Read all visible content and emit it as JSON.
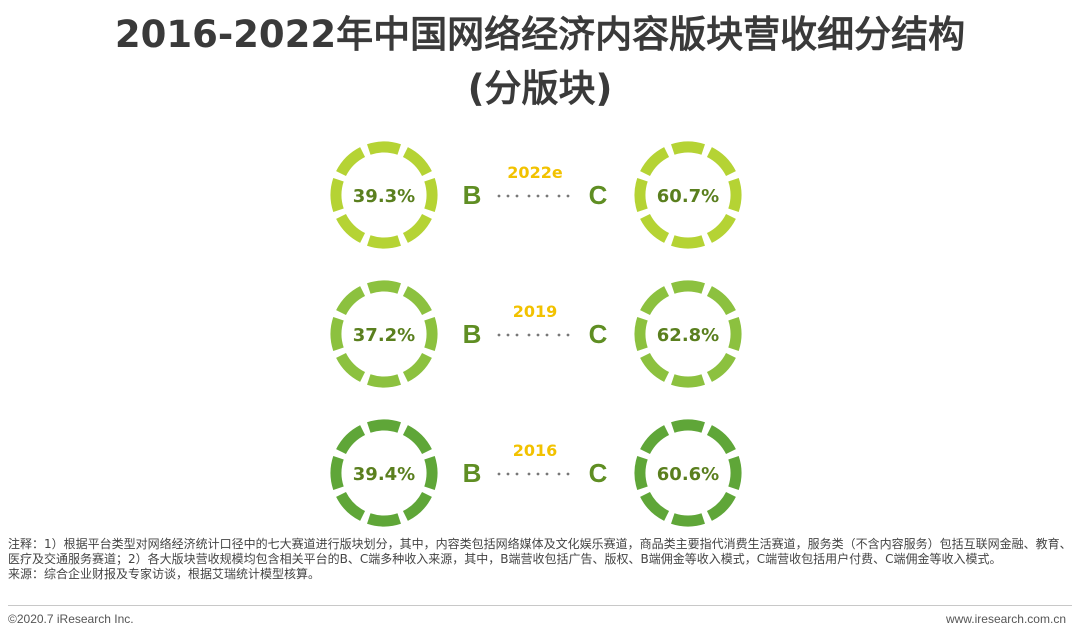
{
  "title": {
    "line1": "2016-2022年中国网络经济内容版块营收细分结构",
    "line2": "(分版块)"
  },
  "chart_data": {
    "type": "pie",
    "panels": [
      {
        "year": "2022e",
        "b_label": "B",
        "c_label": "C",
        "b_value": 39.3,
        "c_value": 60.7,
        "b_text": "39.3%",
        "c_text": "60.7%",
        "ring_color": "#b5d334"
      },
      {
        "year": "2019",
        "b_label": "B",
        "c_label": "C",
        "b_value": 37.2,
        "c_value": 62.8,
        "b_text": "37.2%",
        "c_text": "62.8%",
        "ring_color": "#8cc13f"
      },
      {
        "year": "2016",
        "b_label": "B",
        "c_label": "C",
        "b_value": 39.4,
        "c_value": 60.6,
        "b_text": "39.4%",
        "c_text": "60.6%",
        "ring_color": "#5fa638"
      }
    ]
  },
  "colors": {
    "year_label": "#f2c200",
    "value_text": "#5a7f1e",
    "letter_text": "#5f8e23",
    "dots": "#777777"
  },
  "notes": {
    "line1": "注释：1）根据平台类型对网络经济统计口径中的七大赛道进行版块划分，其中，内容类包括网络媒体及文化娱乐赛道，商品类主要指代消费生活赛道，服务类（不含内容服务）包括互联网金融、教育、医疗及交通服务赛道；2）各大版块营收规模均包含相关平台的B、C端多种收入来源，其中，B端营收包括广告、版权、B端佣金等收入模式，C端营收包括用户付费、C端佣金等收入模式。",
    "line2": "来源：综合企业财报及专家访谈，根据艾瑞统计模型核算。"
  },
  "footer": {
    "left": "©2020.7 iResearch Inc.",
    "right": "www.iresearch.com.cn"
  }
}
